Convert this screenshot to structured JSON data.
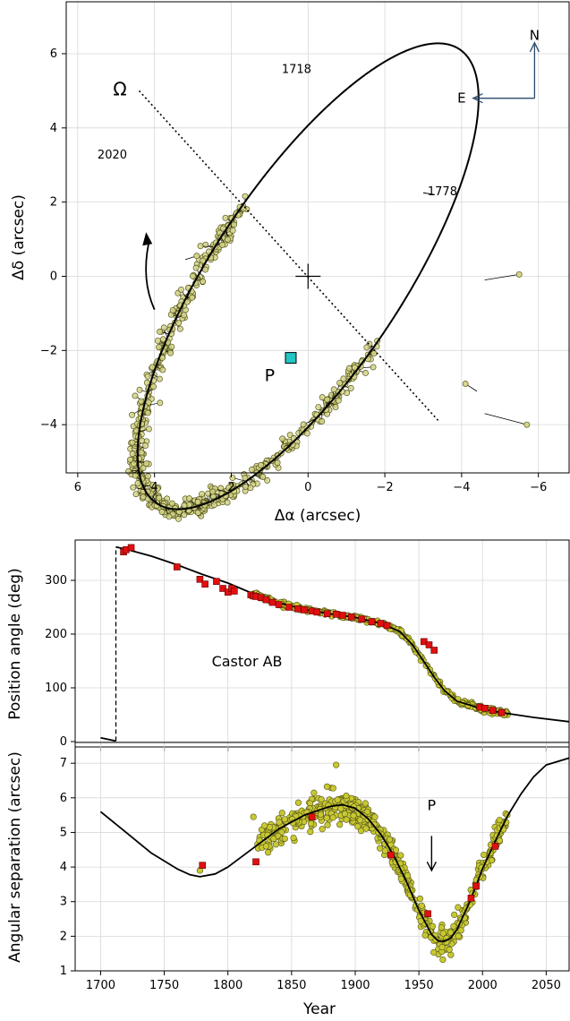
{
  "colors": {
    "orbit": "#000000",
    "observation_fill": "#c8c832",
    "observation_fill_top": "#d6d68c",
    "observation_edge": "#55551a",
    "micrometric": "#e01010",
    "periastron": "#22c4c4",
    "arrow_blue": "#2a4a6a"
  },
  "chart_data": [
    {
      "type": "scatter",
      "xlabel": "Δα (arcsec)",
      "ylabel": "Δδ (arcsec)",
      "xlim": [
        6.3,
        -6.8
      ],
      "ylim": [
        -5.3,
        7.4
      ],
      "xticks": [
        "6",
        "4",
        "2",
        "0",
        "−2",
        "−4",
        "−6"
      ],
      "xtick_values": [
        6,
        4,
        2,
        0,
        -2,
        -4,
        -6
      ],
      "yticks": [
        "6",
        "4",
        "2",
        "0",
        "−2",
        "−4"
      ],
      "ytick_values": [
        6,
        4,
        2,
        0,
        -2,
        -4
      ],
      "grid": true,
      "orbit_ellipse": {
        "center": [
          0,
          0
        ],
        "semi_axis_1": [
          -3.8,
          6.2
        ],
        "semi_axis_2": [
          -2.3,
          -1.0
        ]
      },
      "line_of_nodes": {
        "from": [
          4.4,
          5.0
        ],
        "to": [
          -3.4,
          -3.9
        ]
      },
      "center_mark": [
        0,
        0
      ],
      "annotations": [
        {
          "text": "Ω",
          "x": 4.9,
          "y": 5.0
        },
        {
          "text": "1718",
          "x": 0.3,
          "y": 5.6
        },
        {
          "text": "1778",
          "x": -3.5,
          "y": 2.3
        },
        {
          "text": "2020",
          "x": 5.1,
          "y": 3.3
        },
        {
          "text": "P",
          "x": 1.0,
          "y": -2.7
        },
        {
          "text": "N",
          "x": -5.9,
          "y": 6.5
        },
        {
          "text": "E",
          "x": -4.0,
          "y": 4.8
        }
      ],
      "periastron_point": [
        0.45,
        -2.2
      ],
      "observed_arc": {
        "from_x": 4.4,
        "to_x": -4.9,
        "points": 640,
        "scatter": 0.12
      }
    },
    {
      "type": "line",
      "xlabel": "",
      "ylabel": "Position angle (deg)",
      "xlim": [
        1680,
        2068
      ],
      "ylim": [
        -10,
        375
      ],
      "xticks": [
        "1700",
        "1750",
        "1800",
        "1850",
        "1900",
        "1950",
        "2000",
        "2050"
      ],
      "xtick_values": [
        1700,
        1750,
        1800,
        1850,
        1900,
        1950,
        2000,
        2050
      ],
      "yticks": [
        "0",
        "100",
        "200",
        "300"
      ],
      "ytick_values": [
        0,
        100,
        200,
        300
      ],
      "grid": true,
      "annotations": [
        {
          "text": "Castor AB",
          "x": 1815,
          "y": 140
        }
      ],
      "model_curve": {
        "x": [
          1700,
          1712,
          1712,
          1720,
          1740,
          1760,
          1780,
          1800,
          1820,
          1840,
          1860,
          1880,
          1900,
          1920,
          1935,
          1945,
          1955,
          1962,
          1970,
          1980,
          1990,
          2000,
          2020,
          2040,
          2068
        ],
        "y": [
          7,
          1,
          362,
          358,
          345,
          329,
          311,
          295,
          275,
          258,
          246,
          238,
          231,
          220,
          205,
          180,
          145,
          120,
          95,
          75,
          68,
          60,
          52,
          45,
          37
        ]
      },
      "micrometric_points": {
        "x": [
          1718,
          1720,
          1724,
          1760,
          1778,
          1782,
          1791,
          1796,
          1800,
          1803,
          1805,
          1818,
          1820,
          1822,
          1826,
          1830,
          1835,
          1840,
          1848,
          1855,
          1860,
          1866,
          1870,
          1878,
          1885,
          1890,
          1897,
          1905,
          1913,
          1920,
          1925,
          1954,
          1958,
          1962,
          1998,
          2002,
          2008,
          2015
        ],
        "y": [
          353,
          357,
          361,
          325,
          302,
          293,
          298,
          285,
          278,
          285,
          280,
          273,
          271,
          270,
          268,
          264,
          259,
          255,
          250,
          247,
          245,
          243,
          241,
          238,
          237,
          235,
          232,
          228,
          223,
          220,
          216,
          186,
          180,
          170,
          64,
          62,
          58,
          54
        ]
      }
    },
    {
      "type": "line",
      "xlabel": "Year",
      "ylabel": "Angular separation (arcsec)",
      "xlim": [
        1680,
        2068
      ],
      "ylim": [
        1,
        7.6
      ],
      "xticks": [
        "1700",
        "1750",
        "1800",
        "1850",
        "1900",
        "1950",
        "2000",
        "2050"
      ],
      "xtick_values": [
        1700,
        1750,
        1800,
        1850,
        1900,
        1950,
        2000,
        2050
      ],
      "yticks": [
        "1",
        "2",
        "3",
        "4",
        "5",
        "6",
        "7"
      ],
      "ytick_values": [
        1,
        2,
        3,
        4,
        5,
        6,
        7
      ],
      "grid": true,
      "annotations": [
        {
          "text": "P",
          "x": 1960,
          "y": 4.6
        }
      ],
      "model_curve": {
        "x": [
          1700,
          1720,
          1740,
          1760,
          1770,
          1778,
          1790,
          1800,
          1820,
          1840,
          1860,
          1880,
          1890,
          1900,
          1910,
          1920,
          1930,
          1940,
          1950,
          1960,
          1965,
          1970,
          1975,
          1980,
          1990,
          2000,
          2010,
          2020,
          2030,
          2040,
          2050,
          2068
        ],
        "y": [
          5.6,
          5.0,
          4.4,
          3.95,
          3.78,
          3.72,
          3.8,
          4.0,
          4.55,
          5.1,
          5.5,
          5.75,
          5.8,
          5.7,
          5.4,
          4.95,
          4.35,
          3.6,
          2.75,
          2.05,
          1.87,
          1.85,
          1.95,
          2.2,
          3.0,
          3.95,
          4.75,
          5.5,
          6.1,
          6.6,
          6.95,
          7.15
        ]
      },
      "micrometric_points": {
        "x": [
          1780,
          1822,
          1866,
          1928,
          1957,
          1991,
          1995,
          2010
        ],
        "y": [
          4.05,
          4.15,
          5.45,
          4.35,
          2.65,
          3.1,
          3.45,
          4.6
        ]
      },
      "observations": {
        "from_year": 1778,
        "to_year": 2020,
        "points": 560,
        "scatter": 0.2
      }
    }
  ]
}
